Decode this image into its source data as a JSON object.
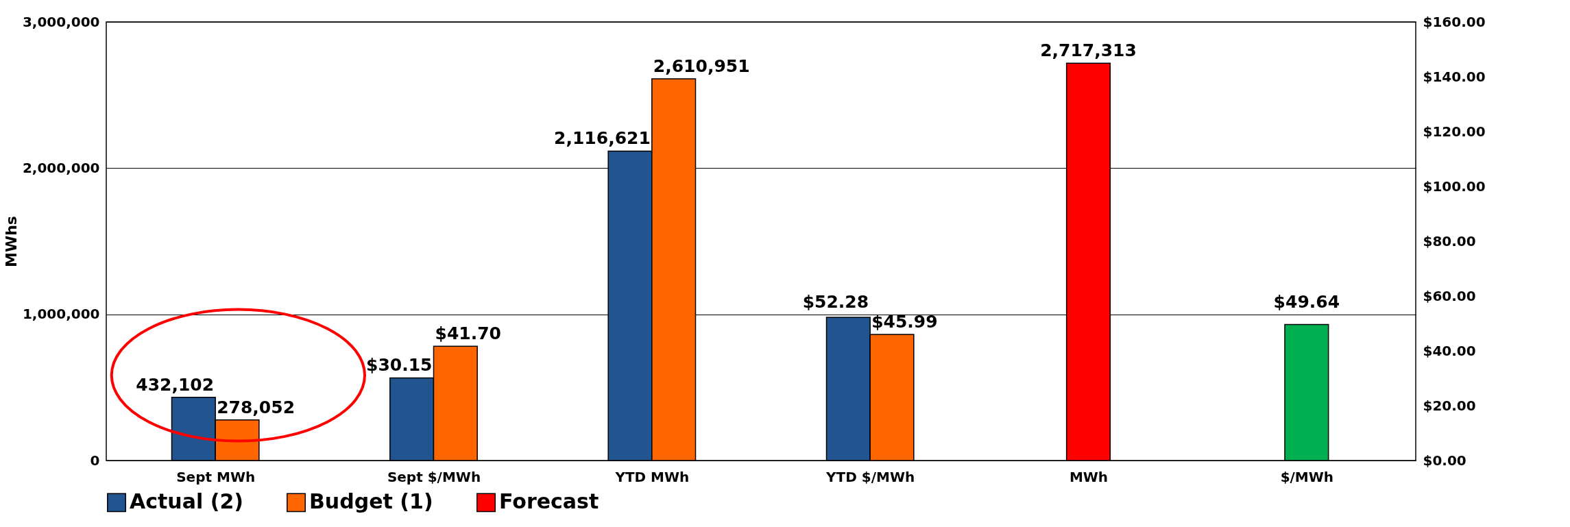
{
  "chart_data": {
    "type": "bar",
    "ylabel": "MWhs",
    "categories": [
      "Sept MWh",
      "Sept $/MWh",
      "YTD MWh",
      "YTD $/MWh",
      "MWh",
      "$/MWh"
    ],
    "series": [
      {
        "name": "Actual (2)",
        "color": "#22558f",
        "values": [
          432102,
          null,
          2116621,
          null,
          null,
          null
        ],
        "value_labels": [
          "432,102",
          null,
          "2,116,621",
          null,
          null,
          null
        ]
      },
      {
        "color": "#22558f",
        "axis": "y2",
        "values": [
          null,
          30.15,
          null,
          52.28,
          null,
          null
        ],
        "value_labels": [
          null,
          "$30.15",
          null,
          "$52.28",
          null,
          null
        ]
      },
      {
        "name": "Budget (1)",
        "color": "#ff6600",
        "values": [
          278052,
          null,
          2610951,
          null,
          null,
          null
        ],
        "value_labels": [
          "278,052",
          null,
          "2,610,951",
          null,
          null,
          null
        ]
      },
      {
        "color": "#ff6600",
        "axis": "y2",
        "values": [
          null,
          41.7,
          null,
          45.99,
          null,
          null
        ],
        "value_labels": [
          null,
          "$41.70",
          null,
          "$45.99",
          null,
          null
        ]
      },
      {
        "name": "Forecast",
        "color": "#ff0000",
        "values": [
          null,
          null,
          null,
          null,
          2717313,
          null
        ],
        "value_labels": [
          null,
          null,
          null,
          null,
          "2,717,313",
          null
        ]
      },
      {
        "color": "#00b050",
        "axis": "y2",
        "values": [
          null,
          null,
          null,
          null,
          null,
          49.64
        ],
        "value_labels": [
          null,
          null,
          null,
          null,
          null,
          "$49.64"
        ]
      }
    ],
    "ylim": [
      0,
      3000000
    ],
    "yticks": [
      {
        "value": 0,
        "label": "0"
      },
      {
        "value": 1000000,
        "label": "1,000,000"
      },
      {
        "value": 2000000,
        "label": "2,000,000"
      },
      {
        "value": 3000000,
        "label": "3,000,000"
      }
    ],
    "y2lim": [
      0,
      160
    ],
    "y2ticks": [
      {
        "value": 0,
        "label": "$0.00"
      },
      {
        "value": 20,
        "label": "$20.00"
      },
      {
        "value": 40,
        "label": "$40.00"
      },
      {
        "value": 60,
        "label": "$60.00"
      },
      {
        "value": 80,
        "label": "$80.00"
      },
      {
        "value": 100,
        "label": "$100.00"
      },
      {
        "value": 120,
        "label": "$120.00"
      },
      {
        "value": 140,
        "label": "$140.00"
      },
      {
        "value": 160,
        "label": "$160.00"
      }
    ],
    "grid": "y",
    "legend": "bottom"
  }
}
